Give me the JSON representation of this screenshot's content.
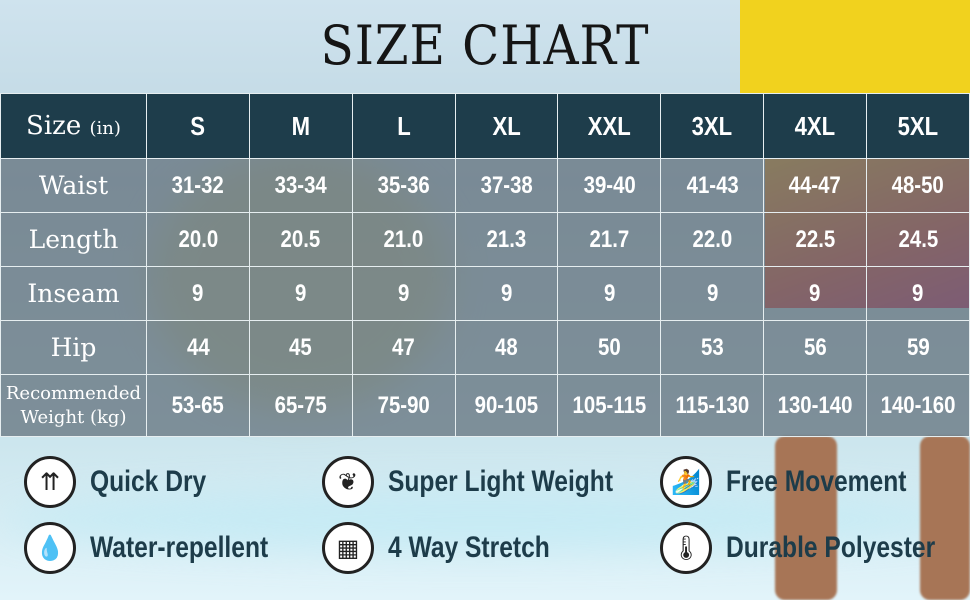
{
  "title": "SIZE CHART",
  "table": {
    "header_label": "Size",
    "header_unit": "(in)",
    "sizes": [
      "S",
      "M",
      "L",
      "XL",
      "XXL",
      "3XL",
      "4XL",
      "5XL"
    ],
    "rows": [
      {
        "label": "Waist",
        "values": [
          "31-32",
          "33-34",
          "35-36",
          "37-38",
          "39-40",
          "41-43",
          "44-47",
          "48-50"
        ]
      },
      {
        "label": "Length",
        "values": [
          "20.0",
          "20.5",
          "21.0",
          "21.3",
          "21.7",
          "22.0",
          "22.5",
          "24.5"
        ]
      },
      {
        "label": "Inseam",
        "values": [
          "9",
          "9",
          "9",
          "9",
          "9",
          "9",
          "9",
          "9"
        ]
      },
      {
        "label": "Hip",
        "values": [
          "44",
          "45",
          "47",
          "48",
          "50",
          "53",
          "56",
          "59"
        ]
      },
      {
        "label": "Recommended",
        "label2": "Weight (kg)",
        "values": [
          "53-65",
          "65-75",
          "75-90",
          "90-105",
          "105-115",
          "115-130",
          "130-140",
          "140-160"
        ]
      }
    ]
  },
  "features": [
    {
      "label": "Quick Dry",
      "icon": "quick-dry-icon"
    },
    {
      "label": "Super Light Weight",
      "icon": "feather-icon"
    },
    {
      "label": "Free Movement",
      "icon": "surfer-icon"
    },
    {
      "label": "Water-repellent",
      "icon": "water-drops-icon"
    },
    {
      "label": "4 Way Stretch",
      "icon": "stretch-fabric-icon"
    },
    {
      "label": "Durable Polyester",
      "icon": "thermometer-icon"
    }
  ],
  "colors": {
    "header": "#1e3d4b",
    "text_dark": "#1d3c4a",
    "cell": "#5f6e78"
  }
}
